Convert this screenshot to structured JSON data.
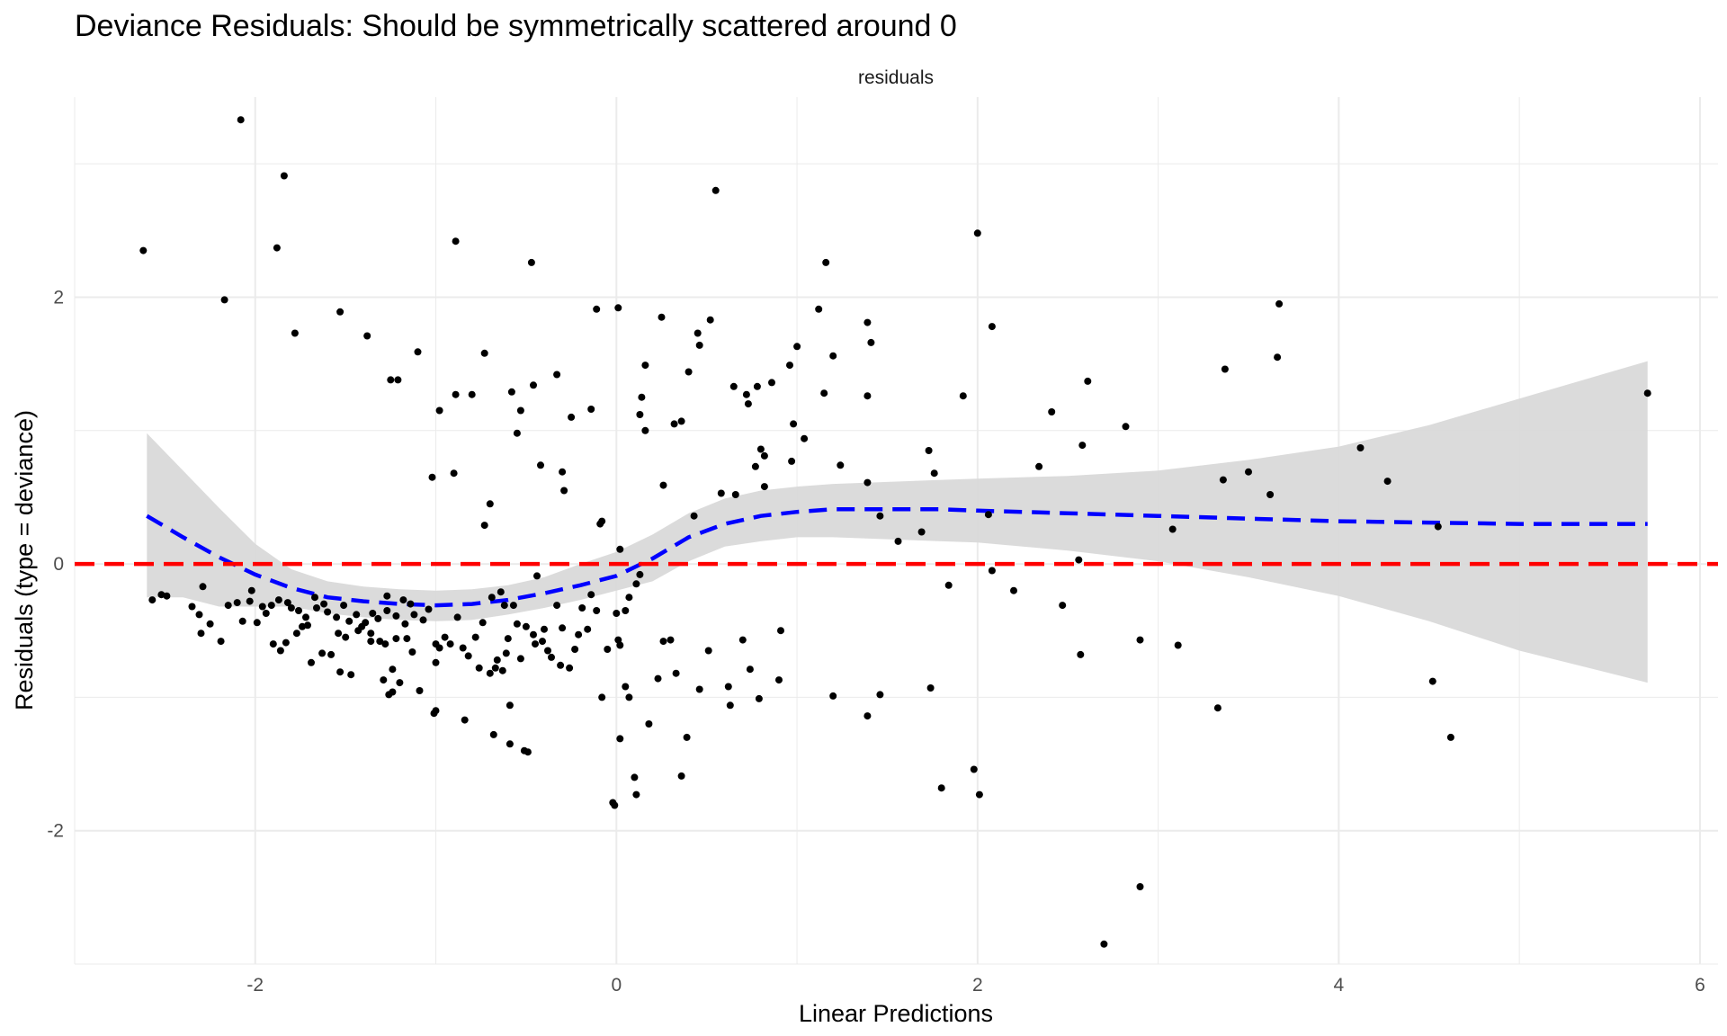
{
  "chart_data": {
    "type": "scatter",
    "title": "Deviance Residuals: Should be symmetrically scattered around 0",
    "facet_label": "residuals",
    "xlabel": "Linear Predictions",
    "ylabel": "Residuals (type = deviance)",
    "xlim": [
      -3.0,
      6.1
    ],
    "ylim": [
      -3.0,
      3.5
    ],
    "x_ticks": [
      -2,
      0,
      2,
      4,
      6
    ],
    "x_tick_labels": [
      "-2",
      "0",
      "2",
      "4",
      "6"
    ],
    "y_ticks": [
      -2,
      0,
      2
    ],
    "y_tick_labels": [
      "-2",
      "0",
      "2"
    ],
    "grid": true,
    "legend": "none",
    "colors": {
      "points": "#000000",
      "smooth": "#0000ff",
      "ribbon": "#d9d9d9",
      "reference": "#ff0000",
      "grid": "#ebebeb"
    },
    "reference_line": {
      "y": 0,
      "style": "dashed",
      "color": "#ff0000"
    },
    "smooth": {
      "style": "dashed",
      "color": "#0000ff",
      "x": [
        -2.6,
        -2.4,
        -2.2,
        -2.0,
        -1.8,
        -1.6,
        -1.4,
        -1.2,
        -1.0,
        -0.8,
        -0.6,
        -0.4,
        -0.2,
        0.0,
        0.2,
        0.4,
        0.6,
        0.8,
        1.0,
        1.2,
        1.4,
        1.6,
        1.8,
        2.0,
        2.5,
        3.0,
        3.5,
        4.0,
        4.5,
        5.0,
        5.71
      ],
      "y": [
        0.36,
        0.2,
        0.05,
        -0.08,
        -0.18,
        -0.25,
        -0.28,
        -0.3,
        -0.31,
        -0.3,
        -0.27,
        -0.22,
        -0.16,
        -0.09,
        0.04,
        0.2,
        0.3,
        0.36,
        0.39,
        0.41,
        0.41,
        0.41,
        0.41,
        0.4,
        0.38,
        0.36,
        0.34,
        0.32,
        0.31,
        0.3,
        0.3
      ],
      "upper": [
        0.98,
        0.7,
        0.42,
        0.15,
        -0.04,
        -0.13,
        -0.17,
        -0.19,
        -0.2,
        -0.19,
        -0.16,
        -0.1,
        0.0,
        0.09,
        0.22,
        0.38,
        0.49,
        0.55,
        0.58,
        0.6,
        0.61,
        0.62,
        0.63,
        0.64,
        0.66,
        0.7,
        0.78,
        0.88,
        1.04,
        1.24,
        1.52
      ],
      "lower": [
        -0.25,
        -0.25,
        -0.32,
        -0.32,
        -0.32,
        -0.37,
        -0.4,
        -0.42,
        -0.43,
        -0.42,
        -0.38,
        -0.33,
        -0.27,
        -0.2,
        -0.13,
        0.02,
        0.13,
        0.17,
        0.2,
        0.2,
        0.19,
        0.18,
        0.17,
        0.16,
        0.1,
        0.02,
        -0.1,
        -0.24,
        -0.43,
        -0.65,
        -0.89
      ]
    },
    "points": [
      [
        -2.08,
        3.33
      ],
      [
        -1.84,
        2.91
      ],
      [
        -2.62,
        2.35
      ],
      [
        -1.88,
        2.37
      ],
      [
        -2.17,
        1.98
      ],
      [
        -1.78,
        1.73
      ],
      [
        -1.53,
        1.89
      ],
      [
        -1.38,
        1.71
      ],
      [
        -1.25,
        1.38
      ],
      [
        -1.21,
        1.38
      ],
      [
        -1.1,
        1.59
      ],
      [
        -0.89,
        2.42
      ],
      [
        -0.98,
        1.15
      ],
      [
        -0.89,
        1.27
      ],
      [
        -0.8,
        1.27
      ],
      [
        -0.58,
        1.29
      ],
      [
        -0.53,
        1.15
      ],
      [
        -0.55,
        0.98
      ],
      [
        -0.47,
        2.26
      ],
      [
        -0.46,
        1.34
      ],
      [
        -0.73,
        1.58
      ],
      [
        -0.33,
        1.42
      ],
      [
        -0.25,
        1.1
      ],
      [
        -0.14,
        1.16
      ],
      [
        -0.11,
        1.91
      ],
      [
        0.01,
        1.92
      ],
      [
        -1.02,
        0.65
      ],
      [
        -0.9,
        0.68
      ],
      [
        -0.7,
        0.45
      ],
      [
        -0.73,
        0.29
      ],
      [
        -0.42,
        0.74
      ],
      [
        -0.3,
        0.69
      ],
      [
        -0.29,
        0.55
      ],
      [
        -0.09,
        0.3
      ],
      [
        -0.08,
        0.32
      ],
      [
        0.02,
        0.11
      ],
      [
        -0.44,
        -0.09
      ],
      [
        -0.33,
        -0.31
      ],
      [
        0.25,
        1.85
      ],
      [
        0.16,
        1.49
      ],
      [
        0.14,
        1.25
      ],
      [
        0.13,
        1.12
      ],
      [
        0.16,
        1.0
      ],
      [
        0.32,
        1.05
      ],
      [
        0.36,
        1.07
      ],
      [
        0.4,
        1.44
      ],
      [
        0.45,
        1.73
      ],
      [
        0.46,
        1.64
      ],
      [
        0.52,
        1.83
      ],
      [
        0.55,
        2.8
      ],
      [
        0.65,
        1.33
      ],
      [
        0.72,
        1.27
      ],
      [
        0.73,
        1.2
      ],
      [
        0.78,
        1.33
      ],
      [
        0.86,
        1.36
      ],
      [
        0.96,
        1.49
      ],
      [
        1.0,
        1.63
      ],
      [
        1.12,
        1.91
      ],
      [
        1.16,
        2.26
      ],
      [
        1.15,
        1.28
      ],
      [
        1.2,
        1.56
      ],
      [
        0.98,
        1.05
      ],
      [
        1.04,
        0.94
      ],
      [
        0.97,
        0.77
      ],
      [
        0.8,
        0.86
      ],
      [
        0.82,
        0.81
      ],
      [
        0.77,
        0.73
      ],
      [
        0.82,
        0.58
      ],
      [
        0.58,
        0.53
      ],
      [
        0.66,
        0.52
      ],
      [
        0.43,
        0.36
      ],
      [
        0.26,
        0.59
      ],
      [
        0.13,
        -0.08
      ],
      [
        0.11,
        -0.15
      ],
      [
        0.07,
        -0.25
      ],
      [
        0.05,
        -0.35
      ],
      [
        1.24,
        0.74
      ],
      [
        1.39,
        0.61
      ],
      [
        1.39,
        1.81
      ],
      [
        1.41,
        1.66
      ],
      [
        1.39,
        1.26
      ],
      [
        1.46,
        0.36
      ],
      [
        1.56,
        0.17
      ],
      [
        1.69,
        0.24
      ],
      [
        1.73,
        0.85
      ],
      [
        1.76,
        0.68
      ],
      [
        1.92,
        1.26
      ],
      [
        2.0,
        2.48
      ],
      [
        2.08,
        1.78
      ],
      [
        2.06,
        0.37
      ],
      [
        2.08,
        -0.05
      ],
      [
        1.84,
        -0.16
      ],
      [
        2.2,
        -0.2
      ],
      [
        2.34,
        0.73
      ],
      [
        2.41,
        1.14
      ],
      [
        2.61,
        1.37
      ],
      [
        2.58,
        0.89
      ],
      [
        2.56,
        0.03
      ],
      [
        2.47,
        -0.31
      ],
      [
        2.57,
        -0.68
      ],
      [
        2.82,
        1.03
      ],
      [
        2.9,
        -0.57
      ],
      [
        3.08,
        0.26
      ],
      [
        3.11,
        -0.61
      ],
      [
        3.33,
        -1.08
      ],
      [
        3.36,
        0.63
      ],
      [
        3.37,
        1.46
      ],
      [
        3.5,
        0.69
      ],
      [
        3.62,
        0.52
      ],
      [
        3.66,
        1.55
      ],
      [
        3.67,
        1.95
      ],
      [
        4.12,
        0.87
      ],
      [
        4.27,
        0.62
      ],
      [
        4.52,
        -0.88
      ],
      [
        4.55,
        0.28
      ],
      [
        4.62,
        -1.3
      ],
      [
        5.71,
        1.28
      ],
      [
        2.9,
        -2.42
      ],
      [
        2.7,
        -2.85
      ],
      [
        1.8,
        -1.68
      ],
      [
        1.98,
        -1.54
      ],
      [
        2.01,
        -1.73
      ],
      [
        1.39,
        -1.14
      ],
      [
        1.46,
        -0.98
      ],
      [
        1.74,
        -0.93
      ],
      [
        1.2,
        -0.99
      ],
      [
        0.9,
        -0.87
      ],
      [
        0.91,
        -0.5
      ],
      [
        0.7,
        -0.57
      ],
      [
        0.74,
        -0.79
      ],
      [
        0.79,
        -1.01
      ],
      [
        0.62,
        -0.92
      ],
      [
        0.63,
        -1.06
      ],
      [
        0.51,
        -0.65
      ],
      [
        0.46,
        -0.94
      ],
      [
        0.39,
        -1.3
      ],
      [
        0.36,
        -1.59
      ],
      [
        0.33,
        -0.82
      ],
      [
        0.3,
        -0.57
      ],
      [
        0.26,
        -0.58
      ],
      [
        0.23,
        -0.86
      ],
      [
        0.18,
        -1.2
      ],
      [
        0.11,
        -1.73
      ],
      [
        0.1,
        -1.6
      ],
      [
        0.05,
        -0.92
      ],
      [
        0.07,
        -1.0
      ],
      [
        0.02,
        -1.31
      ],
      [
        -0.02,
        -1.79
      ],
      [
        -0.01,
        -1.81
      ],
      [
        -0.08,
        -1.0
      ],
      [
        -0.05,
        -0.64
      ],
      [
        0.01,
        -0.57
      ],
      [
        0.02,
        -0.61
      ],
      [
        0.0,
        -0.37
      ],
      [
        -0.11,
        -0.35
      ],
      [
        -0.16,
        -0.49
      ],
      [
        -0.21,
        -0.53
      ],
      [
        -0.23,
        -0.64
      ],
      [
        -0.26,
        -0.78
      ],
      [
        -0.31,
        -0.76
      ],
      [
        -0.36,
        -0.7
      ],
      [
        -0.41,
        -0.58
      ],
      [
        -0.4,
        -0.49
      ],
      [
        -0.46,
        -0.53
      ],
      [
        -0.5,
        -0.47
      ],
      [
        -0.49,
        -1.41
      ],
      [
        -0.51,
        -1.4
      ],
      [
        -0.59,
        -1.35
      ],
      [
        -0.59,
        -1.06
      ],
      [
        -0.68,
        -1.28
      ],
      [
        -0.53,
        -0.71
      ],
      [
        -0.6,
        -0.56
      ],
      [
        -0.61,
        -0.67
      ],
      [
        -0.67,
        -0.78
      ],
      [
        -0.63,
        -0.8
      ],
      [
        -0.62,
        -0.31
      ],
      [
        -0.74,
        -0.44
      ],
      [
        -0.78,
        -0.55
      ],
      [
        -0.85,
        -0.63
      ],
      [
        -0.92,
        -0.6
      ],
      [
        -0.98,
        -0.63
      ],
      [
        -1.0,
        -0.74
      ],
      [
        -0.84,
        -1.17
      ],
      [
        -1.0,
        -1.1
      ],
      [
        -1.01,
        -1.12
      ],
      [
        -1.09,
        -0.95
      ],
      [
        -1.13,
        -0.66
      ],
      [
        -1.16,
        -0.56
      ],
      [
        -1.2,
        -0.89
      ],
      [
        -1.24,
        -0.96
      ],
      [
        -1.26,
        -0.98
      ],
      [
        -1.29,
        -0.87
      ],
      [
        -1.24,
        -0.79
      ],
      [
        -1.31,
        -0.58
      ],
      [
        -1.36,
        -0.52
      ],
      [
        -1.41,
        -0.47
      ],
      [
        -1.47,
        -0.83
      ],
      [
        -1.53,
        -0.81
      ],
      [
        -1.58,
        -0.68
      ],
      [
        -1.63,
        -0.67
      ],
      [
        -1.69,
        -0.74
      ],
      [
        -1.71,
        -0.46
      ],
      [
        -1.77,
        -0.52
      ],
      [
        -1.83,
        -0.59
      ],
      [
        -1.86,
        -0.65
      ],
      [
        -1.9,
        -0.6
      ],
      [
        -2.19,
        -0.58
      ],
      [
        -2.3,
        -0.52
      ],
      [
        -2.57,
        -0.27
      ],
      [
        -2.52,
        -0.23
      ],
      [
        -2.49,
        -0.24
      ],
      [
        -2.29,
        -0.17
      ],
      [
        -2.25,
        -0.45
      ],
      [
        -2.31,
        -0.38
      ],
      [
        -2.15,
        -0.31
      ],
      [
        -2.1,
        -0.29
      ],
      [
        -2.03,
        -0.28
      ],
      [
        -1.99,
        -0.44
      ],
      [
        -1.94,
        -0.37
      ],
      [
        -1.91,
        -0.31
      ],
      [
        -1.87,
        -0.27
      ],
      [
        -1.82,
        -0.29
      ],
      [
        -1.76,
        -0.35
      ],
      [
        -1.72,
        -0.4
      ],
      [
        -1.66,
        -0.33
      ],
      [
        -1.6,
        -0.36
      ],
      [
        -1.55,
        -0.4
      ],
      [
        -1.51,
        -0.31
      ],
      [
        -1.48,
        -0.43
      ],
      [
        -1.44,
        -0.38
      ],
      [
        -1.39,
        -0.44
      ],
      [
        -1.35,
        -0.37
      ],
      [
        -1.32,
        -0.41
      ],
      [
        -1.27,
        -0.35
      ],
      [
        -1.22,
        -0.39
      ],
      [
        -1.17,
        -0.45
      ],
      [
        -1.12,
        -0.38
      ],
      [
        -1.07,
        -0.42
      ],
      [
        -1.04,
        -0.34
      ],
      [
        -1.0,
        -0.6
      ],
      [
        -0.95,
        -0.55
      ],
      [
        -0.88,
        -0.4
      ],
      [
        -0.82,
        -0.69
      ],
      [
        -0.76,
        -0.78
      ],
      [
        -0.69,
        -0.25
      ],
      [
        -0.64,
        -0.21
      ],
      [
        -0.57,
        -0.31
      ],
      [
        -1.54,
        -0.52
      ],
      [
        -1.5,
        -0.55
      ],
      [
        -1.43,
        -0.5
      ],
      [
        -1.36,
        -0.58
      ],
      [
        -1.28,
        -0.6
      ],
      [
        -1.18,
        -0.27
      ],
      [
        -1.14,
        -0.3
      ],
      [
        -2.02,
        -0.2
      ],
      [
        -1.96,
        -0.32
      ],
      [
        -1.8,
        -0.33
      ],
      [
        -1.74,
        -0.47
      ],
      [
        -1.67,
        -0.25
      ],
      [
        -1.62,
        -0.3
      ],
      [
        -2.35,
        -0.32
      ],
      [
        -2.07,
        -0.43
      ],
      [
        -1.27,
        -0.24
      ],
      [
        -1.22,
        -0.56
      ],
      [
        -0.7,
        -0.82
      ],
      [
        -0.66,
        -0.72
      ],
      [
        -0.55,
        -0.45
      ],
      [
        -0.45,
        -0.6
      ],
      [
        -0.38,
        -0.65
      ],
      [
        -0.3,
        -0.48
      ],
      [
        -0.19,
        -0.33
      ],
      [
        -0.14,
        -0.23
      ]
    ]
  }
}
